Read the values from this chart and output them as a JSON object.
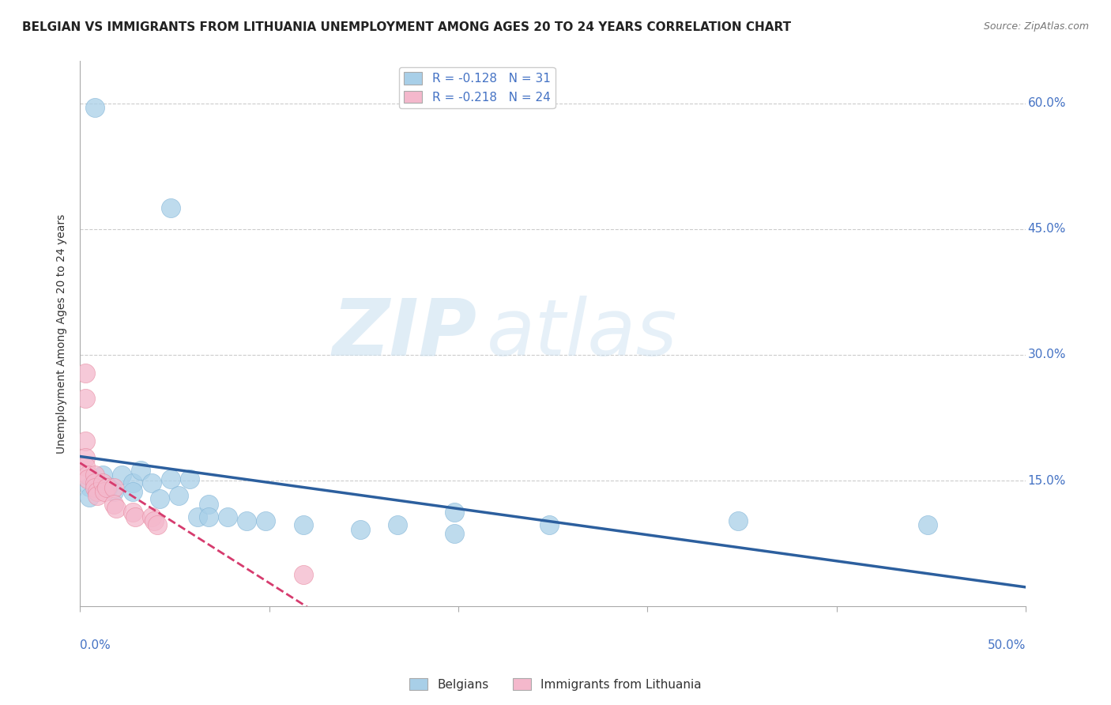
{
  "title": "BELGIAN VS IMMIGRANTS FROM LITHUANIA UNEMPLOYMENT AMONG AGES 20 TO 24 YEARS CORRELATION CHART",
  "source": "Source: ZipAtlas.com",
  "ylabel": "Unemployment Among Ages 20 to 24 years",
  "tick_color": "#4472c4",
  "xlim": [
    0.0,
    0.5
  ],
  "ylim": [
    0.0,
    0.65
  ],
  "xticks": [
    0.0,
    0.1,
    0.2,
    0.3,
    0.4,
    0.5
  ],
  "yticks": [
    0.15,
    0.3,
    0.45,
    0.6
  ],
  "ytick_labels": [
    "15.0%",
    "30.0%",
    "45.0%",
    "60.0%"
  ],
  "xtick_left_label": "0.0%",
  "xtick_right_label": "50.0%",
  "watermark_zip": "ZIP",
  "watermark_atlas": "atlas",
  "blue_R": -0.128,
  "blue_N": 31,
  "pink_R": -0.218,
  "pink_N": 24,
  "blue_color": "#a8cfe8",
  "blue_edge_color": "#7fb3d6",
  "blue_line_color": "#2c5f9e",
  "pink_color": "#f4b8cc",
  "pink_edge_color": "#e8899f",
  "pink_line_color": "#d63b6e",
  "blue_scatter": [
    [
      0.008,
      0.595
    ],
    [
      0.048,
      0.475
    ],
    [
      0.005,
      0.143
    ],
    [
      0.005,
      0.13
    ],
    [
      0.008,
      0.148
    ],
    [
      0.012,
      0.157
    ],
    [
      0.015,
      0.143
    ],
    [
      0.018,
      0.137
    ],
    [
      0.022,
      0.157
    ],
    [
      0.028,
      0.147
    ],
    [
      0.032,
      0.162
    ],
    [
      0.028,
      0.137
    ],
    [
      0.038,
      0.147
    ],
    [
      0.042,
      0.128
    ],
    [
      0.048,
      0.152
    ],
    [
      0.052,
      0.132
    ],
    [
      0.058,
      0.152
    ],
    [
      0.062,
      0.107
    ],
    [
      0.068,
      0.122
    ],
    [
      0.068,
      0.107
    ],
    [
      0.078,
      0.107
    ],
    [
      0.088,
      0.102
    ],
    [
      0.098,
      0.102
    ],
    [
      0.118,
      0.097
    ],
    [
      0.148,
      0.092
    ],
    [
      0.168,
      0.097
    ],
    [
      0.198,
      0.112
    ],
    [
      0.198,
      0.087
    ],
    [
      0.248,
      0.097
    ],
    [
      0.348,
      0.102
    ],
    [
      0.448,
      0.097
    ]
  ],
  "pink_scatter": [
    [
      0.003,
      0.278
    ],
    [
      0.003,
      0.248
    ],
    [
      0.003,
      0.197
    ],
    [
      0.003,
      0.177
    ],
    [
      0.003,
      0.167
    ],
    [
      0.004,
      0.157
    ],
    [
      0.004,
      0.152
    ],
    [
      0.008,
      0.157
    ],
    [
      0.008,
      0.147
    ],
    [
      0.008,
      0.142
    ],
    [
      0.009,
      0.137
    ],
    [
      0.009,
      0.132
    ],
    [
      0.012,
      0.147
    ],
    [
      0.013,
      0.137
    ],
    [
      0.014,
      0.142
    ],
    [
      0.018,
      0.142
    ],
    [
      0.018,
      0.122
    ],
    [
      0.019,
      0.117
    ],
    [
      0.028,
      0.112
    ],
    [
      0.029,
      0.107
    ],
    [
      0.038,
      0.107
    ],
    [
      0.039,
      0.102
    ],
    [
      0.041,
      0.097
    ],
    [
      0.118,
      0.038
    ]
  ],
  "grid_color": "#cccccc",
  "bg_color": "#ffffff",
  "title_fontsize": 11,
  "ylabel_fontsize": 10,
  "tick_fontsize": 11,
  "legend_fontsize": 11,
  "watermark_fontsize_zip": 72,
  "watermark_fontsize_atlas": 72,
  "legend_blue_label": "Belgians",
  "legend_pink_label": "Immigrants from Lithuania"
}
